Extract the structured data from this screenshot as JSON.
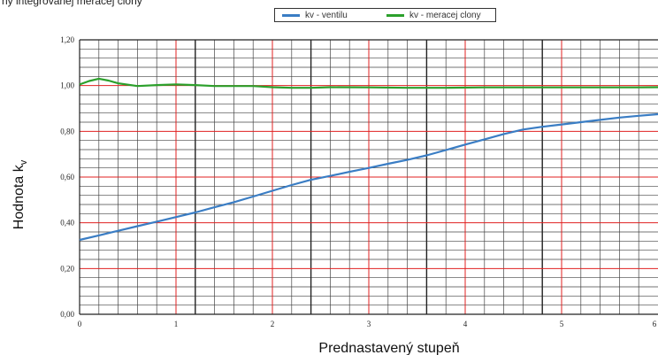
{
  "caption_top": "ný integrovanej meracej clony",
  "chart_data": {
    "type": "line",
    "title": "",
    "xlabel": "Prednastavený stupeň",
    "ylabel": "Hodnota k",
    "ylabel_subscript": "v",
    "xlim": [
      0,
      6
    ],
    "ylim": [
      0,
      1.2
    ],
    "x_ticks": [
      0,
      1,
      2,
      3,
      4,
      5,
      6
    ],
    "x_tick_labels": [
      "0",
      "1",
      "2",
      "3",
      "4",
      "5",
      "6"
    ],
    "y_ticks": [
      0,
      0.2,
      0.4,
      0.6,
      0.8,
      1.0,
      1.2
    ],
    "y_tick_labels": [
      "0,00",
      "0,20",
      "0,40",
      "0,60",
      "0,80",
      "1,00",
      "1,20"
    ],
    "grid": true,
    "legend_position": "top",
    "series": [
      {
        "name": "kv - ventilu",
        "color": "#3a7dc4",
        "x": [
          0,
          0.2,
          0.4,
          0.6,
          0.8,
          1.0,
          1.2,
          1.4,
          1.6,
          1.8,
          2.0,
          2.2,
          2.4,
          2.6,
          2.8,
          3.0,
          3.2,
          3.4,
          3.6,
          3.8,
          4.0,
          4.2,
          4.4,
          4.6,
          4.8,
          5.0,
          5.2,
          5.4,
          5.6,
          5.8,
          6.0
        ],
        "y": [
          0.325,
          0.345,
          0.365,
          0.385,
          0.405,
          0.425,
          0.445,
          0.468,
          0.49,
          0.515,
          0.54,
          0.565,
          0.588,
          0.605,
          0.623,
          0.64,
          0.658,
          0.675,
          0.695,
          0.718,
          0.742,
          0.765,
          0.788,
          0.808,
          0.82,
          0.83,
          0.84,
          0.85,
          0.86,
          0.868,
          0.875
        ]
      },
      {
        "name": "kv - meracej clony",
        "color": "#2ca02c",
        "x": [
          0,
          0.1,
          0.2,
          0.3,
          0.4,
          0.6,
          0.8,
          1.0,
          1.2,
          1.4,
          1.6,
          1.8,
          2.0,
          2.2,
          2.4,
          2.6,
          3.0,
          3.4,
          3.8,
          4.2,
          4.6,
          5.0,
          5.4,
          5.8,
          6.0
        ],
        "y": [
          1.005,
          1.02,
          1.03,
          1.022,
          1.01,
          0.998,
          1.002,
          1.005,
          1.002,
          0.998,
          0.998,
          0.998,
          0.993,
          0.99,
          0.99,
          0.993,
          0.992,
          0.99,
          0.99,
          0.992,
          0.992,
          0.992,
          0.992,
          0.992,
          0.993
        ]
      }
    ]
  }
}
